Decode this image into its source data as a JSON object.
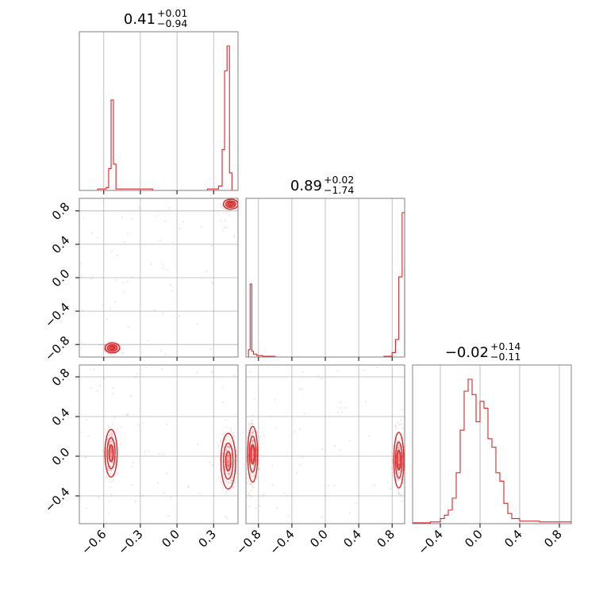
{
  "chart_data": {
    "type": "corner",
    "color": "#d62728",
    "grid": true,
    "parameters": [
      {
        "median": "0.41",
        "plus": "+0.01",
        "minus": "−0.94",
        "range": [
          -0.8,
          0.5
        ],
        "ticks": [
          -0.6,
          -0.3,
          0.0,
          0.3
        ],
        "tick_labels": [
          "−0.6",
          "−0.3",
          "0.0",
          "0.3"
        ]
      },
      {
        "median": "0.89",
        "plus": "+0.02",
        "minus": "−1.74",
        "range": [
          -0.95,
          0.95
        ],
        "ticks": [
          -0.8,
          -0.4,
          0.0,
          0.4,
          0.8
        ],
        "tick_labels": [
          "−0.8",
          "−0.4",
          "0.0",
          "0.4",
          "0.8"
        ]
      },
      {
        "median": "−0.02",
        "plus": "+0.14",
        "minus": "−0.11",
        "range": [
          -0.68,
          0.92
        ],
        "ticks": [
          -0.4,
          0.0,
          0.4,
          0.8
        ],
        "tick_labels": [
          "−0.4",
          "0.0",
          "0.4",
          "0.8"
        ]
      }
    ],
    "histograms": [
      {
        "param": 0,
        "bins_x": [
          -0.8,
          -0.65,
          -0.62,
          -0.58,
          -0.56,
          -0.54,
          -0.52,
          -0.5,
          -0.45,
          -0.2,
          0.25,
          0.34,
          0.37,
          0.39,
          0.41,
          0.43,
          0.45,
          0.5
        ],
        "counts": [
          0,
          0.01,
          0.01,
          0.02,
          0.15,
          0.62,
          0.18,
          0.01,
          0.01,
          0,
          0.01,
          0.03,
          0.28,
          0.82,
          0.99,
          0.12,
          0,
          0
        ]
      },
      {
        "param": 1,
        "bins_x": [
          -0.95,
          -0.92,
          -0.9,
          -0.88,
          -0.86,
          -0.82,
          -0.75,
          -0.6,
          0.0,
          0.7,
          0.8,
          0.84,
          0.88,
          0.92,
          0.95
        ],
        "counts": [
          0,
          0.05,
          0.5,
          0.04,
          0.02,
          0.01,
          0.005,
          0,
          0,
          0.005,
          0.03,
          0.12,
          0.55,
          0.99,
          0
        ]
      },
      {
        "param": 2,
        "bins_x": [
          -0.68,
          -0.5,
          -0.4,
          -0.36,
          -0.32,
          -0.28,
          -0.24,
          -0.2,
          -0.16,
          -0.12,
          -0.08,
          -0.04,
          0.0,
          0.04,
          0.08,
          0.12,
          0.16,
          0.2,
          0.24,
          0.28,
          0.32,
          0.4,
          0.6,
          0.8,
          0.92
        ],
        "counts": [
          0.005,
          0.01,
          0.03,
          0.05,
          0.08,
          0.15,
          0.3,
          0.55,
          0.78,
          0.85,
          0.76,
          0.6,
          0.72,
          0.68,
          0.5,
          0.45,
          0.3,
          0.25,
          0.12,
          0.06,
          0.03,
          0.015,
          0.01,
          0.01,
          0.01
        ]
      }
    ],
    "pairs": [
      {
        "x_param": 0,
        "y_param": 1,
        "modes": [
          {
            "x": -0.53,
            "y": -0.84,
            "sx": 0.03,
            "sy": 0.03
          },
          {
            "x": 0.44,
            "y": 0.88,
            "sx": 0.03,
            "sy": 0.03
          }
        ]
      },
      {
        "x_param": 0,
        "y_param": 2,
        "modes": [
          {
            "x": -0.54,
            "y": 0.03,
            "sx": 0.025,
            "sy": 0.12
          },
          {
            "x": 0.42,
            "y": -0.05,
            "sx": 0.03,
            "sy": 0.14
          }
        ]
      },
      {
        "x_param": 1,
        "y_param": 2,
        "modes": [
          {
            "x": -0.87,
            "y": 0.02,
            "sx": 0.03,
            "sy": 0.14
          },
          {
            "x": 0.88,
            "y": -0.04,
            "sx": 0.03,
            "sy": 0.14
          }
        ]
      }
    ]
  }
}
